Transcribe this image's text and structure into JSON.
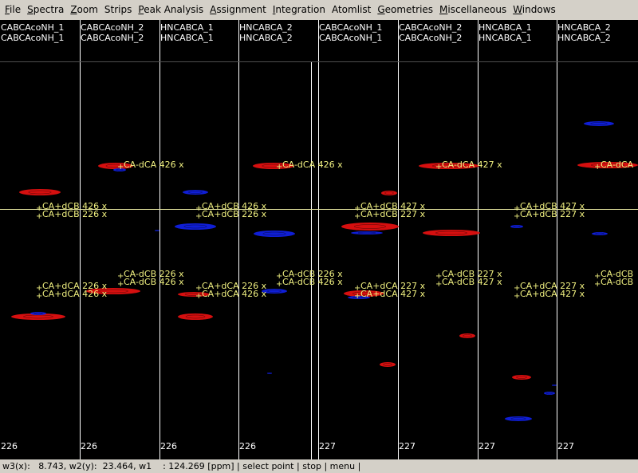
{
  "menu": [
    {
      "mnemonic": "F",
      "rest": "ile"
    },
    {
      "mnemonic": "S",
      "rest": "pectra"
    },
    {
      "mnemonic": "Z",
      "rest": "oom"
    },
    {
      "mnemonic": "",
      "rest": "Strips"
    },
    {
      "mnemonic": "P",
      "rest": "eak Analysis"
    },
    {
      "mnemonic": "A",
      "rest": "ssignment"
    },
    {
      "mnemonic": "I",
      "rest": "ntegration"
    },
    {
      "mnemonic": "",
      "rest": "Atomlist"
    },
    {
      "mnemonic": "G",
      "rest": "eometries"
    },
    {
      "mnemonic": "M",
      "rest": "iscellaneous"
    },
    {
      "mnemonic": "W",
      "rest": "indows"
    }
  ],
  "colors": {
    "background": "#000000",
    "separator": "#ffffff",
    "crosshair": "#e6e6a0",
    "label": "#f0f080",
    "header_text": "#ffffff",
    "positive": "#e01010",
    "negative": "#1020e0"
  },
  "strips": [
    {
      "line1": "CABCAcoNH_1",
      "line2": "CABCAcoNH_1",
      "footer": "226"
    },
    {
      "line1": "CABCAcoNH_2",
      "line2": "CABCAcoNH_2",
      "footer": "226"
    },
    {
      "line1": "HNCABCA_1",
      "line2": "HNCABCA_1",
      "footer": "226"
    },
    {
      "line1": "HNCABCA_2",
      "line2": "HNCABCA_2",
      "footer": "226"
    },
    {
      "line1": "CABCAcoNH_1",
      "line2": "CABCAcoNH_1",
      "footer": "227"
    },
    {
      "line1": "CABCAcoNH_2",
      "line2": "CABCAcoNH_2",
      "footer": "227"
    },
    {
      "line1": "HNCABCA_1",
      "line2": "HNCABCA_1",
      "footer": "227"
    },
    {
      "line1": "HNCABCA_2",
      "line2": "HNCABCA_2",
      "footer": "227"
    }
  ],
  "peak_labels": [
    {
      "strip": 0,
      "text": "CA+dCB 426 x",
      "row": "cb1"
    },
    {
      "strip": 0,
      "text": "CA+dCB 226 x",
      "row": "cb2"
    },
    {
      "strip": 0,
      "text": "CA+dCA 226 x",
      "row": "ca1"
    },
    {
      "strip": 0,
      "text": "CA+dCA 426 x",
      "row": "ca2"
    },
    {
      "strip": 1,
      "text": "CA-dCA 426 x",
      "row": "top"
    },
    {
      "strip": 1,
      "text": "CA-dCB 226 x",
      "row": "neg1"
    },
    {
      "strip": 1,
      "text": "CA-dCB 426 x",
      "row": "neg2"
    },
    {
      "strip": 2,
      "text": "CA+dCB 426 x",
      "row": "cb1"
    },
    {
      "strip": 2,
      "text": "CA+dCB 226 x",
      "row": "cb2"
    },
    {
      "strip": 2,
      "text": "CA+dCA 226 x",
      "row": "ca1"
    },
    {
      "strip": 2,
      "text": "CA+dCA 426 x",
      "row": "ca2"
    },
    {
      "strip": 3,
      "text": "CA-dCA 426 x",
      "row": "top"
    },
    {
      "strip": 3,
      "text": "CA-dCB 226 x",
      "row": "neg1"
    },
    {
      "strip": 3,
      "text": "CA-dCB 426 x",
      "row": "neg2"
    },
    {
      "strip": 4,
      "text": "CA+dCB 427 x",
      "row": "cb1"
    },
    {
      "strip": 4,
      "text": "CA+dCB 227 x",
      "row": "cb2"
    },
    {
      "strip": 4,
      "text": "CA+dCA 227 x",
      "row": "ca1"
    },
    {
      "strip": 4,
      "text": "CA+dCA 427 x",
      "row": "ca2"
    },
    {
      "strip": 5,
      "text": "CA-dCA 427 x",
      "row": "top"
    },
    {
      "strip": 5,
      "text": "CA-dCB 227 x",
      "row": "neg1"
    },
    {
      "strip": 5,
      "text": "CA-dCB 427 x",
      "row": "neg2"
    },
    {
      "strip": 6,
      "text": "CA+dCB 427 x",
      "row": "cb1"
    },
    {
      "strip": 6,
      "text": "CA+dCB 227 x",
      "row": "cb2"
    },
    {
      "strip": 6,
      "text": "CA+dCA 227 x",
      "row": "ca1"
    },
    {
      "strip": 6,
      "text": "CA+dCA 427 x",
      "row": "ca2"
    },
    {
      "strip": 7,
      "text": "CA-dCA",
      "row": "top"
    },
    {
      "strip": 7,
      "text": "CA-dCB",
      "row": "neg1"
    },
    {
      "strip": 7,
      "text": "CA-dCB",
      "row": "neg2"
    }
  ],
  "status": {
    "w3_label": "w3(x):",
    "w3_value": "8.743,",
    "w2_label": "w2(y):",
    "w2_value": "23.464,",
    "w1_label": "w1",
    "w1_value": ": 124.269",
    "unit": "[ppm]",
    "mode": "select point",
    "stop": "stop",
    "menu": "menu"
  }
}
